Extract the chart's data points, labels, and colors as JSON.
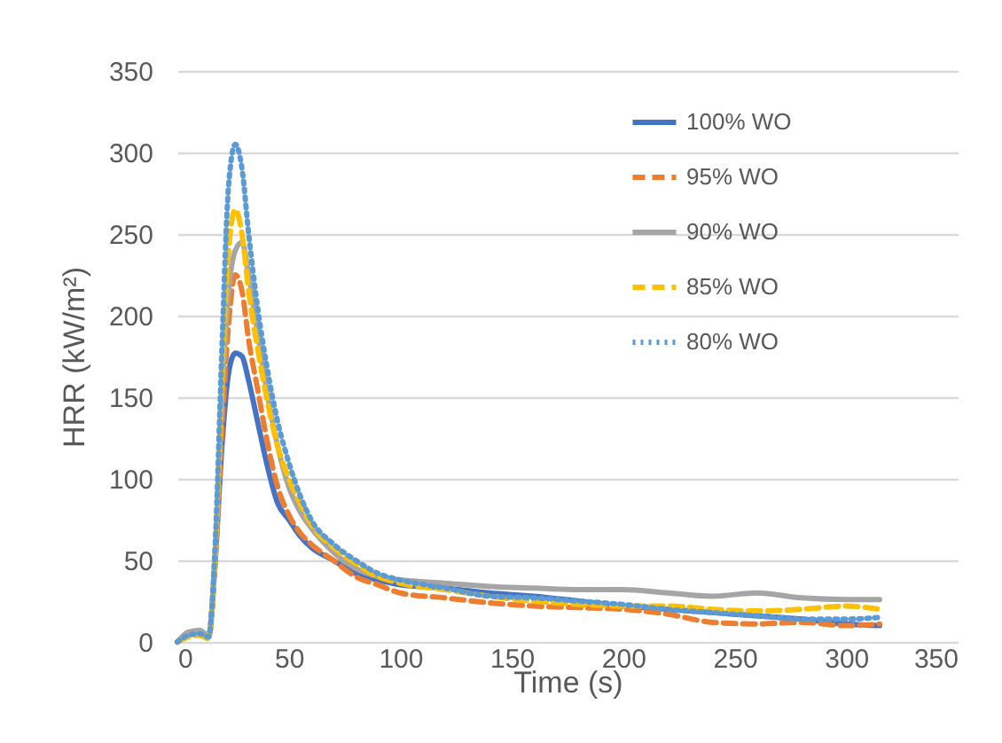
{
  "chart_data": {
    "type": "line",
    "xlabel": "Time (s)",
    "ylabel": "HRR (kW/m²)",
    "x": [
      0,
      5,
      10,
      14,
      17,
      20,
      23,
      26,
      29,
      32,
      36,
      40,
      45,
      50,
      55,
      60,
      70,
      80,
      90,
      100,
      120,
      140,
      160,
      180,
      200,
      220,
      240,
      260,
      280,
      300,
      315
    ],
    "series": [
      {
        "name": "100% WO",
        "color": "#4472c4",
        "line_style": "solid",
        "values": [
          0,
          5,
          6,
          3,
          50,
          120,
          165,
          177,
          175,
          160,
          135,
          110,
          85,
          75,
          65,
          58,
          50,
          42,
          38,
          35,
          33,
          30,
          28,
          25,
          22,
          20,
          18,
          16,
          14,
          11,
          10
        ]
      },
      {
        "name": "95% WO",
        "color": "#ed7d31",
        "line_style": "dashed",
        "values": [
          0,
          4,
          5,
          2,
          50,
          130,
          195,
          225,
          215,
          185,
          155,
          125,
          95,
          78,
          67,
          60,
          50,
          40,
          35,
          30,
          27,
          24,
          22,
          21,
          20,
          17,
          12,
          11,
          12,
          10,
          11
        ]
      },
      {
        "name": "90% WO",
        "color": "#a5a5a5",
        "line_style": "solid",
        "values": [
          0,
          6,
          7,
          4,
          55,
          150,
          215,
          240,
          245,
          225,
          190,
          155,
          120,
          95,
          80,
          70,
          55,
          45,
          40,
          38,
          36,
          34,
          33,
          32,
          32,
          30,
          28,
          30,
          27,
          26,
          26
        ]
      },
      {
        "name": "85% WO",
        "color": "#ffc000",
        "line_style": "dashed",
        "values": [
          0,
          3,
          4,
          2,
          55,
          160,
          240,
          265,
          250,
          215,
          180,
          150,
          120,
          100,
          85,
          72,
          58,
          48,
          40,
          36,
          32,
          28,
          25,
          23,
          22,
          22,
          20,
          19,
          20,
          22,
          20
        ]
      },
      {
        "name": "80% WO",
        "color": "#5b9bd5",
        "line_style": "dotted",
        "values": [
          0,
          4,
          5,
          3,
          60,
          180,
          280,
          305,
          290,
          250,
          205,
          170,
          135,
          110,
          90,
          75,
          60,
          50,
          42,
          38,
          33,
          28,
          27,
          25,
          23,
          20,
          18,
          16,
          14,
          14,
          15
        ]
      }
    ],
    "xlim": [
      0,
      350
    ],
    "xticks": [
      0,
      50,
      100,
      150,
      200,
      250,
      300,
      350
    ],
    "ylim": [
      0,
      350
    ],
    "yticks": [
      0,
      50,
      100,
      150,
      200,
      250,
      300,
      350
    ],
    "grid": "y",
    "legend": "top right"
  }
}
